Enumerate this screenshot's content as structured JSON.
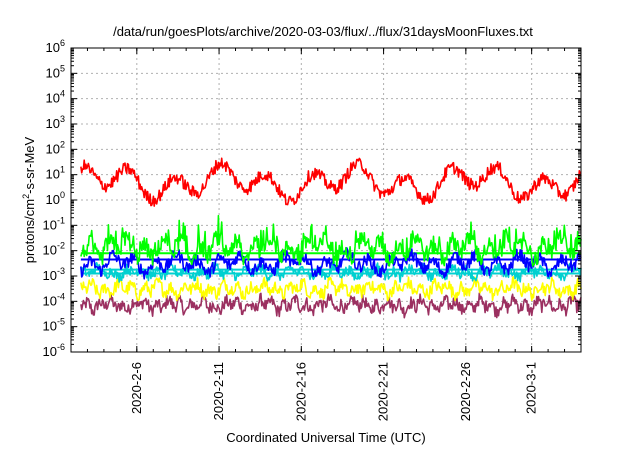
{
  "chart_data": {
    "type": "line",
    "title": "/data/run/goesPlots/archive/2020-03-03/flux/../flux/31daysMoonFluxes.txt",
    "xlabel": "Coordinated Universal Time (UTC)",
    "ylabel": {
      "base": "protons/cm",
      "sup": "2",
      "rest": "-s-sr-MeV"
    },
    "y_scale": "log",
    "ylim_exp": [
      -6,
      6
    ],
    "y_ticks": [
      {
        "base": "10",
        "exp": "6"
      },
      {
        "base": "10",
        "exp": "5"
      },
      {
        "base": "10",
        "exp": "4"
      },
      {
        "base": "10",
        "exp": "3"
      },
      {
        "base": "10",
        "exp": "2"
      },
      {
        "base": "10",
        "exp": "1"
      },
      {
        "base": "10",
        "exp": "0"
      },
      {
        "base": "10",
        "exp": "-1"
      },
      {
        "base": "10",
        "exp": "-2"
      },
      {
        "base": "10",
        "exp": "-3"
      },
      {
        "base": "10",
        "exp": "-4"
      },
      {
        "base": "10",
        "exp": "-5"
      },
      {
        "base": "10",
        "exp": "-6"
      }
    ],
    "x_range": [
      "2020-02-02",
      "2020-03-04"
    ],
    "x_tick_labels": [
      "2020-2-6",
      "2020-2-11",
      "2020-2-16",
      "2020-2-21",
      "2020-2-26",
      "2020-3-1"
    ],
    "x_tick_dates": [
      "2020-02-06",
      "2020-02-11",
      "2020-02-16",
      "2020-02-21",
      "2020-02-26",
      "2020-03-01"
    ],
    "grid": true,
    "series": [
      {
        "color": "#ff0000",
        "level": 0.7,
        "amp": 0.9,
        "jitter": 0.25,
        "period": 2.8
      },
      {
        "color": "#00ff00",
        "level": -1.9,
        "amp": 0.55,
        "jitter": 0.35,
        "period": 1.1
      },
      {
        "color": "#0000ff",
        "level": -2.5,
        "amp": 0.45,
        "jitter": 0.25,
        "period": 1.3
      },
      {
        "color": "#00d0d0",
        "level": -2.85,
        "amp": 0.25,
        "jitter": 0.2,
        "period": 0.9
      },
      {
        "color": "#ffff00",
        "level": -3.5,
        "amp": 0.3,
        "jitter": 0.25,
        "period": 0.8
      },
      {
        "color": "#9b3060",
        "level": -4.15,
        "amp": 0.3,
        "jitter": 0.25,
        "period": 0.7
      }
    ],
    "reference_lines": [
      {
        "color": "#00ff00",
        "value_exp": -2.1
      },
      {
        "color": "#0000ff",
        "value_exp": -2.35
      },
      {
        "color": "#00d0d0",
        "value_exp": -2.75
      },
      {
        "color": "#00d0d0",
        "value_exp": -2.9
      }
    ]
  }
}
